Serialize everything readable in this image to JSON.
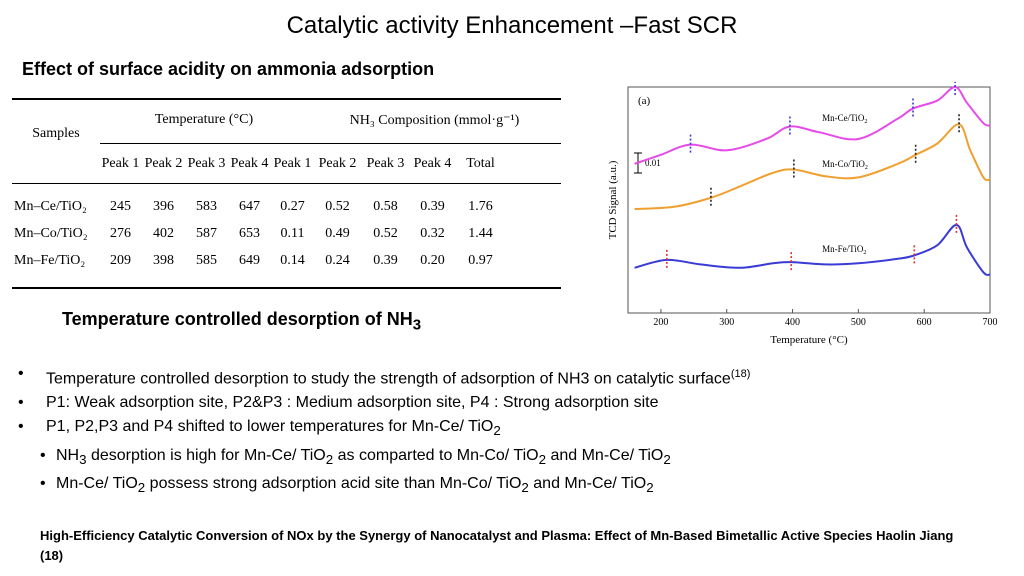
{
  "slide": {
    "title": "Catalytic activity Enhancement –Fast SCR",
    "subtitle": "Effect of surface acidity on ammonia adsorption",
    "tpd_title": "Temperature controlled desorption of NH",
    "tpd_title_sub": "3"
  },
  "table": {
    "samples_header": "Samples",
    "temp_group": "Temperature (°C)",
    "nh3_group": "NH₃ Composition (mmol·g⁻¹)",
    "sub_headers": [
      "Peak 1",
      "Peak 2",
      "Peak 3",
      "Peak 4",
      "Peak 1",
      "Peak 2",
      "Peak 3",
      "Peak 4",
      "Total"
    ],
    "rows": [
      {
        "sample": "Mn–Ce/TiO₂",
        "values": [
          "245",
          "396",
          "583",
          "647",
          "0.27",
          "0.52",
          "0.58",
          "0.39",
          "1.76"
        ]
      },
      {
        "sample": "Mn–Co/TiO₂",
        "values": [
          "276",
          "402",
          "587",
          "653",
          "0.11",
          "0.49",
          "0.52",
          "0.32",
          "1.44"
        ]
      },
      {
        "sample": "Mn–Fe/TiO₂",
        "values": [
          "209",
          "398",
          "585",
          "649",
          "0.14",
          "0.24",
          "0.39",
          "0.20",
          "0.97"
        ]
      }
    ]
  },
  "bullets": {
    "b1": "Temperature controlled desorption to study the strength of adsorption of NH3 on catalytic surface",
    "b1_ref": "(18)",
    "b2": "P1: Weak adsorption site, P2&P3 : Medium adsorption site, P4 : Strong adsorption site",
    "b3_text": "P1, P2,P3 and P4 shifted to lower temperatures for Mn-Ce/ TiO",
    "sub1_a": "NH",
    "sub1_b": " desorption is high for Mn-Ce/ TiO",
    "sub1_c": " as comparted to Mn-Co/ TiO",
    "sub1_d": " and Mn-Ce/ TiO",
    "sub2_a": "Mn-Ce/ TiO",
    "sub2_b": " possess strong adsorption acid site than Mn-Co/ TiO",
    "sub2_c": " and Mn-Ce/ TiO",
    "sub_2": "2",
    "sub_3": "3"
  },
  "reference": {
    "text": "High-Efficiency Catalytic Conversion of NOx by the Synergy of Nanocatalyst and Plasma: Effect of Mn-Based Bimetallic Active Species   Haolin Jiang (18)"
  },
  "chart_data": {
    "type": "line",
    "panel_label": "(a)",
    "xlabel": "Temperature (°C)",
    "ylabel": "TCD Signal (a.u.)",
    "scale_label": "0.01",
    "xlim": [
      150,
      700
    ],
    "x_ticks": [
      200,
      300,
      400,
      500,
      600,
      700
    ],
    "series": [
      {
        "name": "Mn-Ce/TiO₂",
        "color": "#e64be8",
        "label": "Mn-Ce/TiO",
        "x": [
          160,
          200,
          245,
          300,
          360,
          396,
          440,
          500,
          560,
          583,
          620,
          647,
          665,
          690,
          700
        ],
        "y": [
          0.66,
          0.7,
          0.745,
          0.72,
          0.77,
          0.825,
          0.8,
          0.77,
          0.86,
          0.905,
          0.94,
          1.0,
          0.93,
          0.84,
          0.83
        ]
      },
      {
        "name": "Mn-Co/TiO₂",
        "color": "#f0a030",
        "label": "Mn-Co/TiO",
        "x": [
          160,
          220,
          276,
          320,
          370,
          402,
          450,
          500,
          560,
          587,
          620,
          653,
          670,
          690,
          700
        ],
        "y": [
          0.46,
          0.47,
          0.51,
          0.56,
          0.62,
          0.635,
          0.605,
          0.6,
          0.66,
          0.7,
          0.75,
          0.835,
          0.72,
          0.6,
          0.59
        ]
      },
      {
        "name": "Mn-Fe/TiO₂",
        "color": "#3a3ad6",
        "label": "Mn-Fe/TiO",
        "x": [
          160,
          209,
          260,
          320,
          370,
          398,
          450,
          500,
          560,
          585,
          620,
          649,
          665,
          690,
          700
        ],
        "y": [
          0.2,
          0.235,
          0.215,
          0.2,
          0.22,
          0.225,
          0.215,
          0.22,
          0.24,
          0.255,
          0.3,
          0.39,
          0.29,
          0.18,
          0.17
        ]
      }
    ],
    "peak_markers": [
      {
        "series": "Mn-Ce/TiO₂",
        "x": [
          245,
          396,
          583,
          647
        ]
      },
      {
        "series": "Mn-Co/TiO₂",
        "x": [
          276,
          402,
          587,
          653
        ]
      },
      {
        "series": "Mn-Fe/TiO₂",
        "x": [
          209,
          398,
          585,
          649
        ]
      }
    ]
  }
}
